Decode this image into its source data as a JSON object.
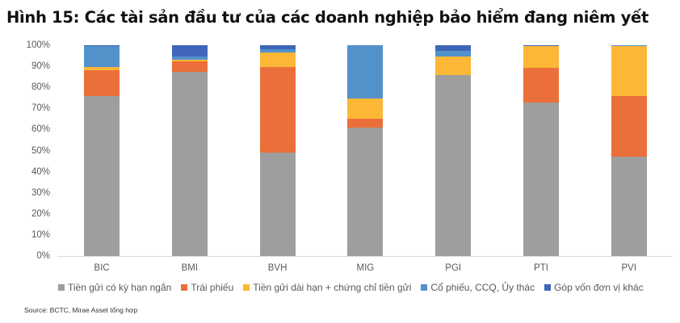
{
  "title": "Hình 15: Các tài sản đầu tư của các doanh nghiệp bảo hiểm đang niêm yết",
  "source": "Source: BCTC, Mirae Asset tổng hợp",
  "chart_data": {
    "type": "bar",
    "stacked": true,
    "percent": true,
    "title": "Hình 15: Các tài sản đầu tư của các doanh nghiệp bảo hiểm đang niêm yết",
    "xlabel": "",
    "ylabel": "",
    "ylim": [
      0,
      100
    ],
    "yticks": [
      "0%",
      "10%",
      "20%",
      "30%",
      "40%",
      "50%",
      "60%",
      "70%",
      "80%",
      "90%",
      "100%"
    ],
    "categories": [
      "BIC",
      "BMI",
      "BVH",
      "MIG",
      "PGI",
      "PTI",
      "PVI"
    ],
    "series": [
      {
        "name": "Tiền gửi có kỳ hạn ngắn",
        "color": "#9e9e9e",
        "values": [
          76.0,
          87.5,
          48.9,
          61.0,
          85.8,
          72.8,
          47.3
        ]
      },
      {
        "name": "Trái phiếu",
        "color": "#eb6f3a",
        "values": [
          12.3,
          5.0,
          40.9,
          4.1,
          0.0,
          16.5,
          28.7
        ]
      },
      {
        "name": "Tiền gửi dài hạn + chứng chỉ tiền gửi",
        "color": "#fcb737",
        "values": [
          1.2,
          0.5,
          6.7,
          9.6,
          9.0,
          10.3,
          23.6
        ]
      },
      {
        "name": "Cổ phiếu, CCQ, Ủy thác",
        "color": "#5391cb",
        "values": [
          10.1,
          1.6,
          1.6,
          25.3,
          2.5,
          0.0,
          0.4
        ]
      },
      {
        "name": "Góp vốn đơn vị khác",
        "color": "#3f66b9",
        "values": [
          0.4,
          5.4,
          1.9,
          0.0,
          2.7,
          0.4,
          0.0
        ]
      }
    ],
    "legend_position": "bottom",
    "grid": false
  }
}
